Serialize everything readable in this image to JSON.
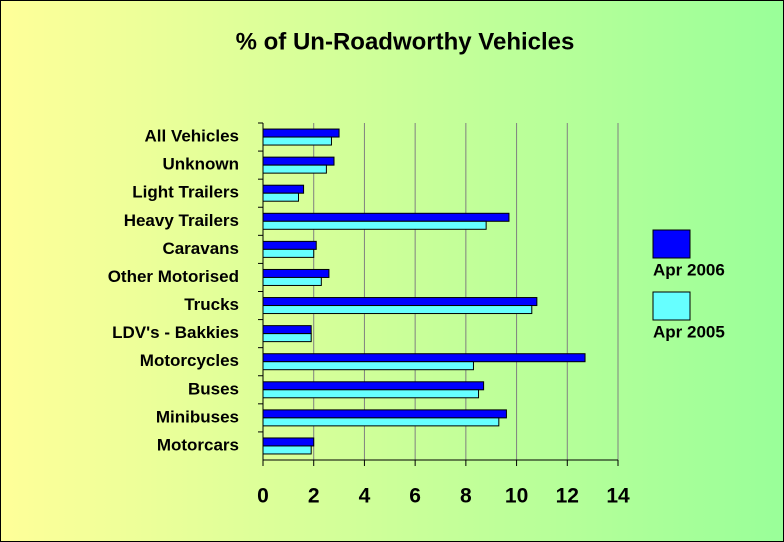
{
  "chart_data": {
    "type": "hbar",
    "title": "% of Un-Roadworthy Vehicles",
    "categories": [
      "All Vehicles",
      "Unknown",
      "Light Trailers",
      "Heavy Trailers",
      "Caravans",
      "Other Motorised",
      "Trucks",
      "LDV's - Bakkies",
      "Motorcycles",
      "Buses",
      "Minibuses",
      "Motorcars"
    ],
    "series": [
      {
        "name": "Apr 2006",
        "color": "#0000ff",
        "values": [
          3.0,
          2.8,
          1.6,
          9.7,
          2.1,
          2.6,
          10.8,
          1.9,
          12.7,
          8.7,
          9.6,
          2.0
        ]
      },
      {
        "name": "Apr 2005",
        "color": "#66ffff",
        "values": [
          2.7,
          2.5,
          1.4,
          8.8,
          2.0,
          2.3,
          10.6,
          1.9,
          8.3,
          8.5,
          9.3,
          1.9
        ]
      }
    ],
    "xlim": [
      0,
      14
    ],
    "xticks": [
      0,
      2,
      4,
      6,
      8,
      10,
      12,
      14
    ],
    "grid": true,
    "legend": "right"
  }
}
